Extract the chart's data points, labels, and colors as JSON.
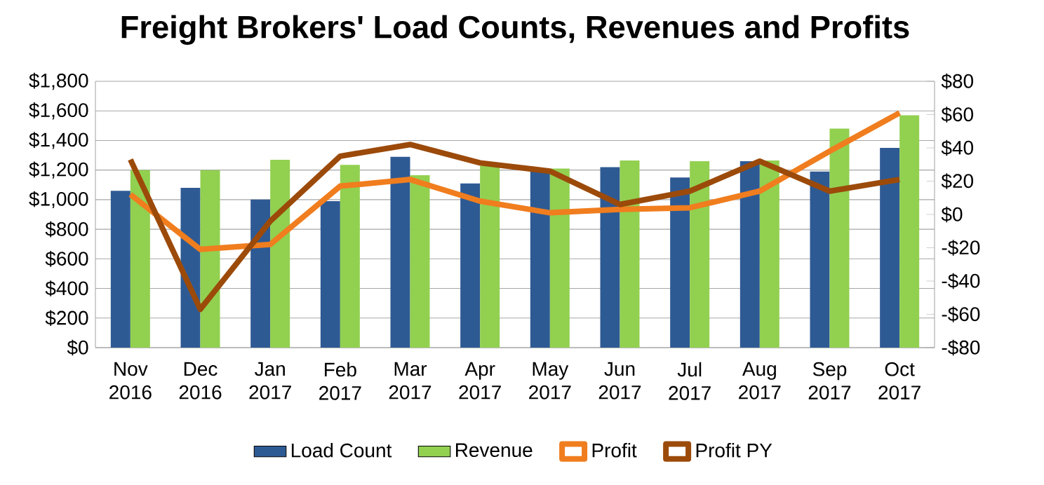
{
  "chart_data": {
    "type": "bar",
    "title": "Freight Brokers' Load Counts, Revenues and Profits",
    "categories": [
      "Nov 2016",
      "Dec 2016",
      "Jan 2017",
      "Feb 2017",
      "Mar 2017",
      "Apr 2017",
      "May 2017",
      "Jun 2017",
      "Jul 2017",
      "Aug 2017",
      "Sep 2017",
      "Oct 2017"
    ],
    "series": [
      {
        "name": "Load Count",
        "color": "#2e5a94",
        "values": [
          1060,
          1080,
          1000,
          990,
          1290,
          1110,
          1200,
          1220,
          1150,
          1260,
          1190,
          1350
        ]
      },
      {
        "name": "Revenue",
        "color": "#92d050",
        "values": [
          1200,
          1200,
          1270,
          1235,
          1165,
          1230,
          1210,
          1265,
          1260,
          1265,
          1480,
          1570
        ]
      },
      {
        "name": "Profit",
        "type": "line",
        "axis": "y2",
        "color": "#f07d1e",
        "values": [
          12,
          -21,
          -18,
          17,
          21,
          8,
          1,
          3,
          4,
          14,
          38,
          61
        ]
      },
      {
        "name": "Profit PY",
        "type": "line",
        "axis": "y2",
        "color": "#9c4a0a",
        "values": [
          33,
          -57,
          -4,
          35,
          42,
          31,
          26,
          6,
          14,
          32,
          14,
          21
        ]
      }
    ],
    "ylim": [
      0,
      1800
    ],
    "yticks": [
      {
        "value": 0,
        "label": "$0"
      },
      {
        "value": 200,
        "label": "$200"
      },
      {
        "value": 400,
        "label": "$400"
      },
      {
        "value": 600,
        "label": "$600"
      },
      {
        "value": 800,
        "label": "$800"
      },
      {
        "value": 1000,
        "label": "$1,000"
      },
      {
        "value": 1200,
        "label": "$1,200"
      },
      {
        "value": 1400,
        "label": "$1,400"
      },
      {
        "value": 1600,
        "label": "$1,600"
      },
      {
        "value": 1800,
        "label": "$1,800"
      }
    ],
    "y2lim": [
      -80,
      80
    ],
    "y2ticks": [
      {
        "value": -80,
        "label": "-$80"
      },
      {
        "value": -60,
        "label": "-$60"
      },
      {
        "value": -40,
        "label": "-$40"
      },
      {
        "value": -20,
        "label": "-$20"
      },
      {
        "value": 0,
        "label": "$0"
      },
      {
        "value": 20,
        "label": "$20"
      },
      {
        "value": 40,
        "label": "$40"
      },
      {
        "value": 60,
        "label": "$60"
      },
      {
        "value": 80,
        "label": "$80"
      }
    ],
    "grid": "y",
    "legend": "bottom",
    "marker": "none",
    "line_style": "solid"
  }
}
